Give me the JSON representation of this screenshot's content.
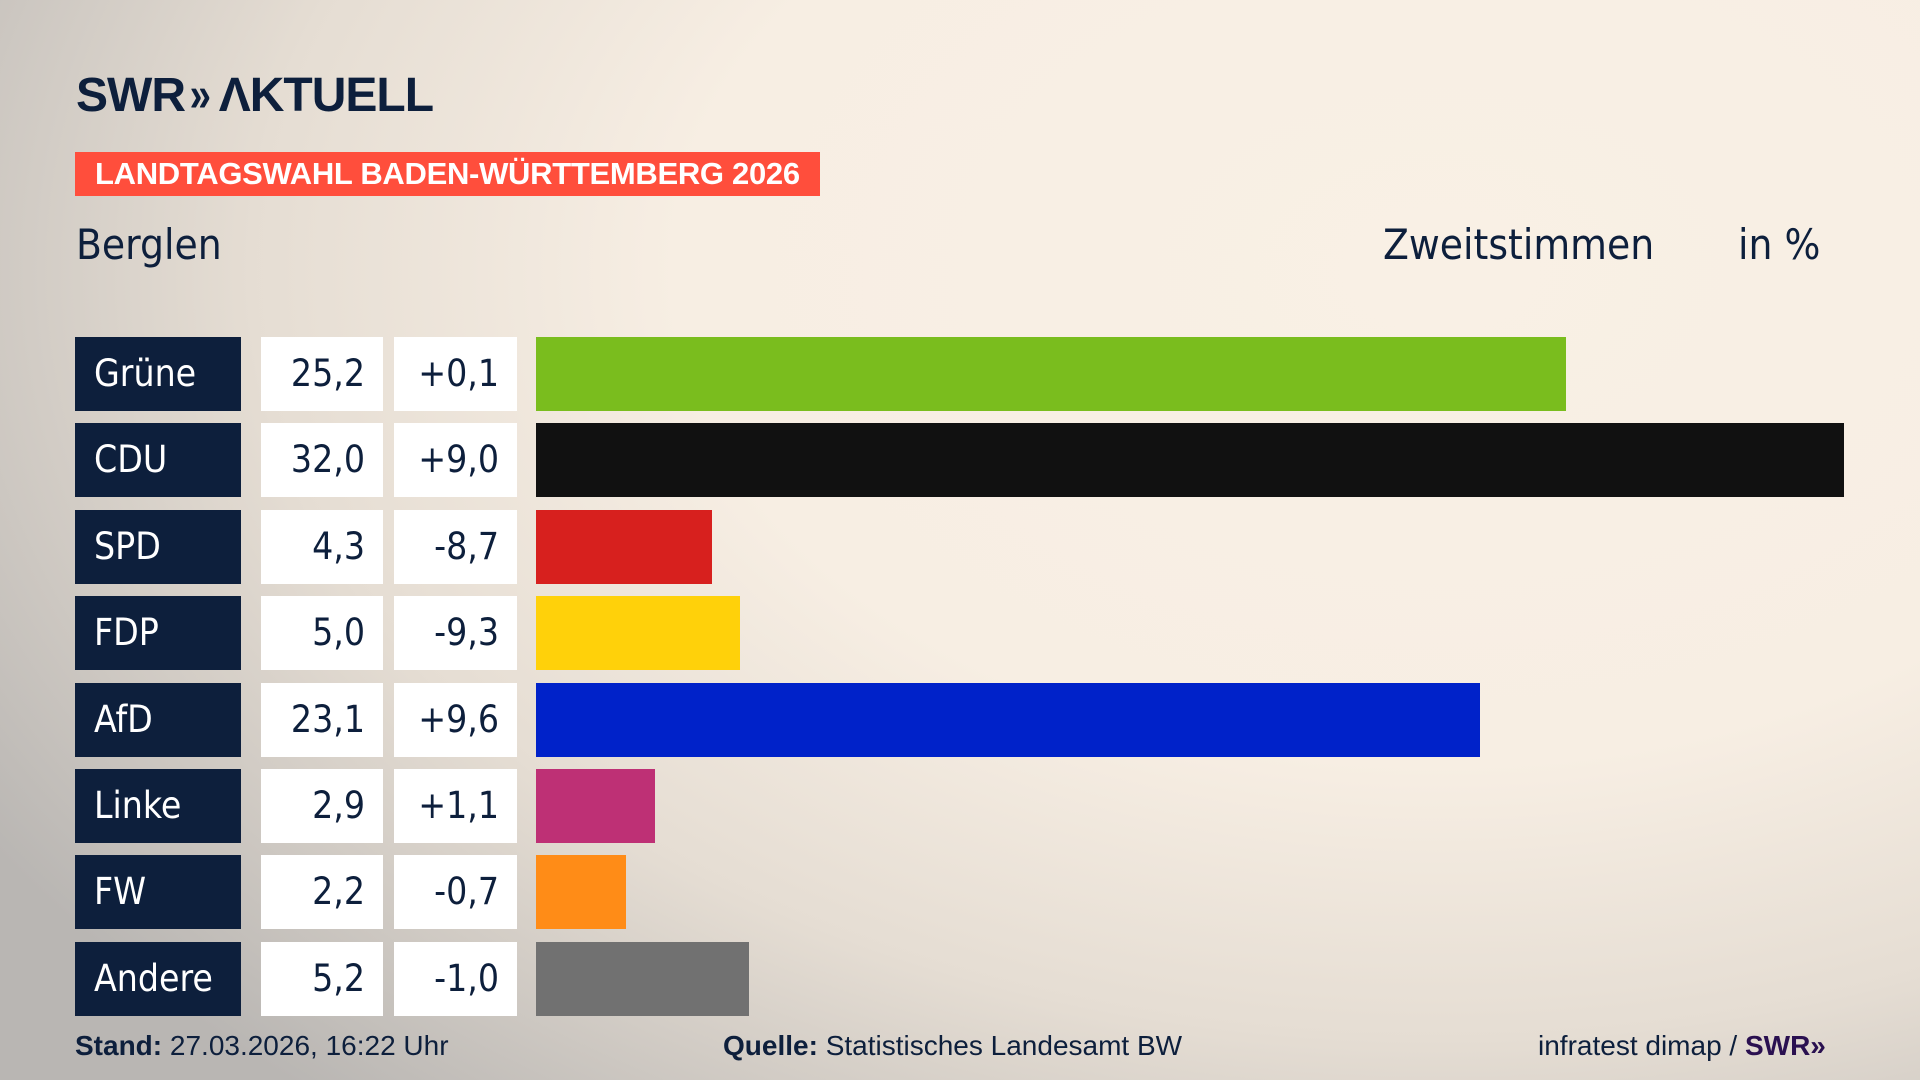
{
  "header": {
    "logo": "SWR AKTUELL",
    "banner": "LANDTAGSWAHL BADEN-WÜRTTEMBERG 2026",
    "place": "Berglen",
    "vote_type": "Zweitstimmen",
    "unit": "in %"
  },
  "chart_data": {
    "type": "bar",
    "orientation": "horizontal",
    "xlim": [
      0,
      32
    ],
    "categories": [
      "Grüne",
      "CDU",
      "SPD",
      "FDP",
      "AfD",
      "Linke",
      "FW",
      "Andere"
    ],
    "values": [
      25.2,
      32.0,
      4.3,
      5.0,
      23.1,
      2.9,
      2.2,
      5.2
    ],
    "value_labels": [
      "25,2",
      "32,0",
      "4,3",
      "5,0",
      "23,1",
      "2,9",
      "2,2",
      "5,2"
    ],
    "diff_labels": [
      "+0,1",
      "+9,0",
      "-8,7",
      "-9,3",
      "+9,6",
      "+1,1",
      "-0,7",
      "-1,0"
    ],
    "diffs": [
      0.1,
      9.0,
      -8.7,
      -9.3,
      9.6,
      1.1,
      -0.7,
      -1.0
    ],
    "colors": [
      "#7abd1e",
      "#111111",
      "#d7201e",
      "#ffd10a",
      "#0022c9",
      "#be3075",
      "#ff8c17",
      "#717171"
    ]
  },
  "footer": {
    "stand_label": "Stand:",
    "stand": "27.03.2026, 16:22 Uhr",
    "source_label": "Quelle:",
    "source": "Statistisches Landesamt BW",
    "credit": "infratest dimap /",
    "credit_logo": "SWR»"
  }
}
